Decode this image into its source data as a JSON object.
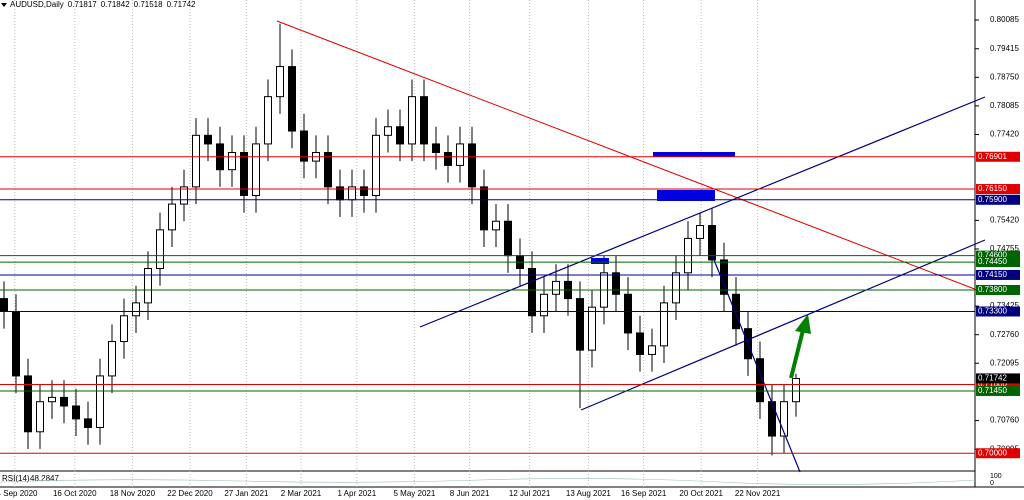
{
  "header": {
    "symbol": "AUDUSD,Daily",
    "ohlc": [
      0.71817,
      0.71842,
      0.71518,
      0.71742
    ]
  },
  "chart_data": {
    "type": "candlestick",
    "open": [
      0.736,
      0.733,
      0.718,
      0.705,
      0.712,
      0.713,
      0.711,
      0.708,
      0.706,
      0.718,
      0.726,
      0.732,
      0.735,
      0.743,
      0.752,
      0.758,
      0.762,
      0.774,
      0.772,
      0.766,
      0.77,
      0.76,
      0.772,
      0.783,
      0.79,
      0.775,
      0.768,
      0.77,
      0.762,
      0.759,
      0.762,
      0.76,
      0.774,
      0.776,
      0.772,
      0.783,
      0.772,
      0.77,
      0.767,
      0.772,
      0.762,
      0.752,
      0.754,
      0.746,
      0.743,
      0.732,
      0.737,
      0.74,
      0.736,
      0.724,
      0.734,
      0.742,
      0.737,
      0.728,
      0.723,
      0.725,
      0.735,
      0.742,
      0.75,
      0.753,
      0.745,
      0.737,
      0.729,
      0.722,
      0.712,
      0.704,
      0.712
    ],
    "high": [
      0.74,
      0.737,
      0.722,
      0.716,
      0.717,
      0.717,
      0.715,
      0.712,
      0.722,
      0.73,
      0.736,
      0.739,
      0.747,
      0.756,
      0.762,
      0.766,
      0.778,
      0.778,
      0.776,
      0.774,
      0.774,
      0.776,
      0.787,
      0.8,
      0.794,
      0.779,
      0.774,
      0.774,
      0.766,
      0.766,
      0.766,
      0.778,
      0.78,
      0.78,
      0.787,
      0.787,
      0.776,
      0.774,
      0.776,
      0.776,
      0.766,
      0.758,
      0.758,
      0.75,
      0.747,
      0.741,
      0.744,
      0.744,
      0.74,
      0.738,
      0.746,
      0.746,
      0.741,
      0.732,
      0.729,
      0.739,
      0.746,
      0.754,
      0.756,
      0.757,
      0.749,
      0.741,
      0.733,
      0.726,
      0.716,
      0.716,
      0.7185
    ],
    "low": [
      0.729,
      0.714,
      0.701,
      0.701,
      0.708,
      0.707,
      0.704,
      0.702,
      0.702,
      0.714,
      0.722,
      0.728,
      0.731,
      0.739,
      0.748,
      0.754,
      0.758,
      0.768,
      0.762,
      0.762,
      0.756,
      0.756,
      0.768,
      0.779,
      0.771,
      0.764,
      0.764,
      0.758,
      0.755,
      0.755,
      0.756,
      0.756,
      0.77,
      0.768,
      0.768,
      0.768,
      0.766,
      0.763,
      0.763,
      0.758,
      0.748,
      0.748,
      0.742,
      0.739,
      0.728,
      0.728,
      0.733,
      0.732,
      0.7105,
      0.72,
      0.73,
      0.733,
      0.724,
      0.719,
      0.719,
      0.721,
      0.731,
      0.738,
      0.746,
      0.741,
      0.733,
      0.725,
      0.718,
      0.708,
      0.6995,
      0.7,
      0.7085
    ],
    "close": [
      0.733,
      0.718,
      0.705,
      0.712,
      0.713,
      0.711,
      0.708,
      0.706,
      0.718,
      0.726,
      0.732,
      0.735,
      0.743,
      0.752,
      0.758,
      0.762,
      0.774,
      0.772,
      0.766,
      0.77,
      0.76,
      0.772,
      0.783,
      0.79,
      0.775,
      0.768,
      0.77,
      0.762,
      0.759,
      0.762,
      0.76,
      0.774,
      0.776,
      0.772,
      0.783,
      0.772,
      0.77,
      0.767,
      0.772,
      0.762,
      0.752,
      0.754,
      0.746,
      0.743,
      0.732,
      0.737,
      0.74,
      0.736,
      0.724,
      0.734,
      0.742,
      0.737,
      0.728,
      0.723,
      0.725,
      0.735,
      0.742,
      0.75,
      0.753,
      0.745,
      0.737,
      0.729,
      0.722,
      0.712,
      0.704,
      0.712,
      0.7174
    ],
    "xlim": [
      -0.333,
      82
    ],
    "ylim": [
      0.6961,
      0.8055
    ],
    "xticks": [
      {
        "value": 0.9,
        "label": "14 Sep 2020"
      },
      {
        "value": 5.9,
        "label": "16 Oct 2020"
      },
      {
        "value": 10.7,
        "label": "18 Nov 2020"
      },
      {
        "value": 15.5,
        "label": "22 Dec 2020"
      },
      {
        "value": 20.2,
        "label": "27 Jan 2021"
      },
      {
        "value": 24.75,
        "label": "2 Mar 2021"
      },
      {
        "value": 29.4,
        "label": "1 Apr 2021"
      },
      {
        "value": 34.2,
        "label": "5 May 2021"
      },
      {
        "value": 38.8,
        "label": "8 Jun 2021"
      },
      {
        "value": 43.8,
        "label": "12 Jul 2021"
      },
      {
        "value": 48.7,
        "label": "13 Aug 2021"
      },
      {
        "value": 53.3,
        "label": "16 Sep 2021"
      },
      {
        "value": 58.1,
        "label": "20 Oct 2021"
      },
      {
        "value": 62.8,
        "label": "22 Nov 2021"
      }
    ],
    "yticks": [
      0.80085,
      0.79415,
      {
        "value": 0.7875,
        "label": "0.78750"
      },
      0.78085,
      {
        "value": 0.7742,
        "label": "0.77420"
      },
      {
        "value": 0.7542,
        "label": "0.75420"
      },
      0.74755,
      0.73425,
      {
        "value": 0.7276,
        "label": "0.72760"
      },
      0.72095,
      {
        "value": 0.7076,
        "label": "0.70760"
      },
      0.70095
    ],
    "grid": true,
    "up_color": "#ffffff",
    "down_color": "#000000",
    "levels": [
      {
        "value": 0.76901,
        "label": "0.76901",
        "color": "#e00000"
      },
      {
        "value": 0.7615,
        "label": "0.76150",
        "color": "#e00000"
      },
      {
        "value": 0.759,
        "label": "0.75900",
        "color": "#000080"
      },
      {
        "value": 0.746,
        "label": "0.74600",
        "color": "#006400"
      },
      {
        "value": 0.7445,
        "label": "0.74450",
        "color": "#006400"
      },
      {
        "value": 0.7415,
        "label": "0.74150",
        "color": "#000080"
      },
      {
        "value": 0.738,
        "label": "0.73800",
        "color": "#006400"
      },
      {
        "value": 0.733,
        "label": "0.73300",
        "color": "#000080"
      },
      {
        "value": 0.716,
        "label": "0.71600",
        "color": "#e00000"
      },
      {
        "value": 0.7145,
        "label": "0.71450",
        "color": "#006400"
      },
      {
        "value": 0.7,
        "label": "0.70000",
        "color": "#e00000"
      }
    ]
  },
  "rsi": {
    "label": "RSI(14)",
    "value": 48.2847,
    "yticks": [
      100,
      0
    ]
  }
}
